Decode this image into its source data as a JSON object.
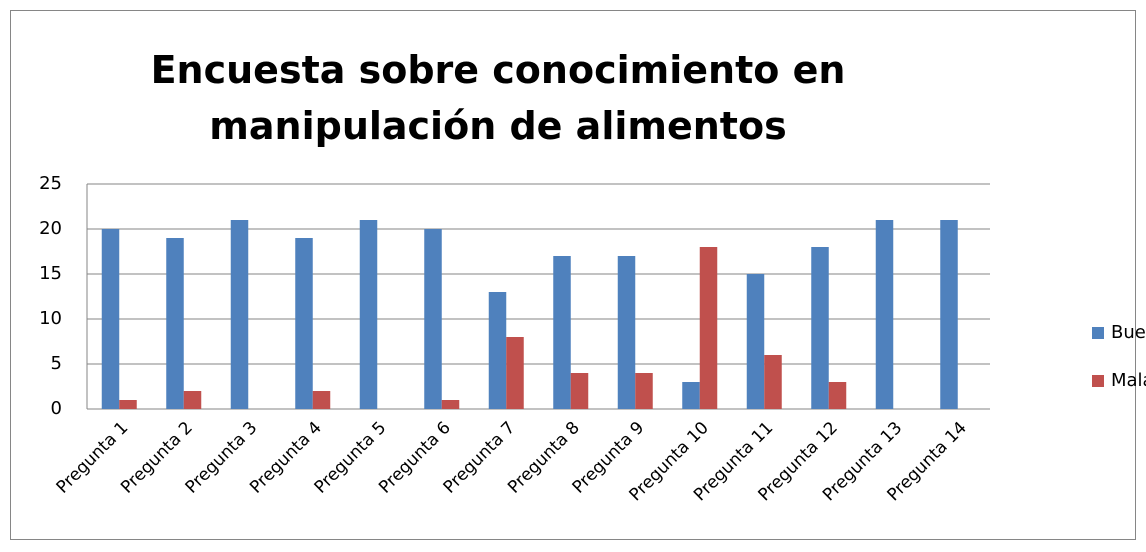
{
  "chart_data": {
    "type": "bar",
    "title": "Encuesta sobre conocimiento en manipulación de alimentos",
    "categories": [
      "Pregunta 1",
      "Pregunta 2",
      "Pregunta 3",
      "Pregunta 4",
      "Pregunta 5",
      "Pregunta 6",
      "Pregunta 7",
      "Pregunta 8",
      "Pregunta 9",
      "Pregunta 10",
      "Pregunta 11",
      "Pregunta 12",
      "Pregunta 13",
      "Pregunta 14"
    ],
    "series": [
      {
        "name": "Buenas",
        "color": "#4f81bd",
        "values": [
          20,
          19,
          21,
          19,
          21,
          20,
          13,
          17,
          17,
          3,
          15,
          18,
          21,
          21
        ]
      },
      {
        "name": "Malas",
        "color": "#c0504d",
        "values": [
          1,
          2,
          0,
          2,
          0,
          1,
          8,
          4,
          4,
          18,
          6,
          3,
          0,
          0
        ]
      }
    ],
    "ylim": [
      0,
      25
    ],
    "yticks": [
      0,
      5,
      10,
      15,
      20,
      25
    ],
    "grid": true,
    "legend": "right"
  }
}
